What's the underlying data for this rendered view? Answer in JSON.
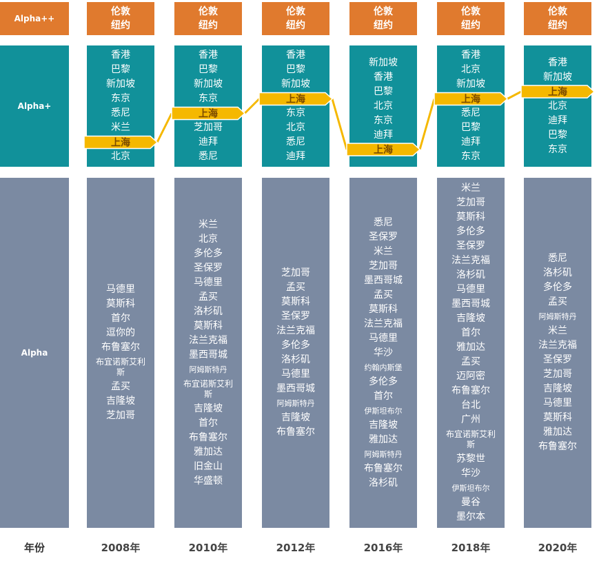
{
  "tiers": {
    "alpha_pp": "Alpha++",
    "alpha_p": "Alpha+",
    "alpha": "Alpha",
    "year_label": "年份"
  },
  "columns": [
    {
      "year": "2008年",
      "top": [
        "伦敦",
        "纽约"
      ],
      "alpha_plus": [
        "香港",
        "巴黎",
        "新加坡",
        "东京",
        "悉尼",
        "米兰",
        "上海",
        "北京"
      ],
      "alpha": [
        "马德里",
        "莫斯科",
        "首尔",
        "逗你的",
        "布鲁塞尔",
        "布宜诺斯艾利斯",
        "孟买",
        "吉隆坡",
        "芝加哥"
      ]
    },
    {
      "year": "2010年",
      "top": [
        "伦敦",
        "纽约"
      ],
      "alpha_plus": [
        "香港",
        "巴黎",
        "新加坡",
        "东京",
        "上海",
        "芝加哥",
        "迪拜",
        "悉尼"
      ],
      "alpha": [
        "米兰",
        "北京",
        "多伦多",
        "圣保罗",
        "马德里",
        "孟买",
        "洛杉矶",
        "莫斯科",
        "法兰克福",
        "墨西哥城",
        "阿姆斯特丹",
        "布宜诺斯艾利斯",
        "吉隆坡",
        "首尔",
        "布鲁塞尔",
        "雅加达",
        "旧金山",
        "华盛顿"
      ]
    },
    {
      "year": "2012年",
      "top": [
        "伦敦",
        "纽约"
      ],
      "alpha_plus": [
        "香港",
        "巴黎",
        "新加坡",
        "上海",
        "东京",
        "北京",
        "悉尼",
        "迪拜"
      ],
      "alpha": [
        "芝加哥",
        "孟买",
        "莫斯科",
        "圣保罗",
        "法兰克福",
        "多伦多",
        "洛杉矶",
        "马德里",
        "墨西哥城",
        "阿姆斯特丹",
        "吉隆坡",
        "布鲁塞尔"
      ]
    },
    {
      "year": "2016年",
      "top": [
        "伦敦",
        "纽约"
      ],
      "alpha_plus": [
        "新加坡",
        "香港",
        "巴黎",
        "北京",
        "东京",
        "迪拜",
        "上海"
      ],
      "alpha": [
        "悉尼",
        "圣保罗",
        "米兰",
        "芝加哥",
        "墨西哥城",
        "孟买",
        "莫斯科",
        "法兰克福",
        "马德里",
        "华沙",
        "约翰内斯堡",
        "多伦多",
        "首尔",
        "伊斯坦布尔",
        "吉隆坡",
        "雅加达",
        "阿姆斯特丹",
        "布鲁塞尔",
        "洛杉矶"
      ]
    },
    {
      "year": "2018年",
      "top": [
        "伦敦",
        "纽约"
      ],
      "alpha_plus": [
        "香港",
        "北京",
        "新加坡",
        "上海",
        "悉尼",
        "巴黎",
        "迪拜",
        "东京"
      ],
      "alpha": [
        "米兰",
        "芝加哥",
        "莫斯科",
        "多伦多",
        "圣保罗",
        "法兰克福",
        "洛杉矶",
        "马德里",
        "墨西哥城",
        "吉隆坡",
        "首尔",
        "雅加达",
        "孟买",
        "迈阿密",
        "布鲁塞尔",
        "台北",
        "广州",
        "布宜诺斯艾利斯",
        "苏黎世",
        "华沙",
        "伊斯坦布尔",
        "曼谷",
        "墨尔本"
      ]
    },
    {
      "year": "2020年",
      "top": [
        "伦敦",
        "纽约"
      ],
      "alpha_plus": [
        "香港",
        "新加坡",
        "上海",
        "北京",
        "迪拜",
        "巴黎",
        "东京"
      ],
      "alpha": [
        "悉尼",
        "洛杉矶",
        "多伦多",
        "孟买",
        "阿姆斯特丹",
        "米兰",
        "法兰克福",
        "圣保罗",
        "芝加哥",
        "吉隆坡",
        "马德里",
        "莫斯科",
        "雅加达",
        "布鲁塞尔"
      ]
    }
  ],
  "highlight": {
    "city": "上海",
    "fill": "#f5b800",
    "stroke": "#ffffff"
  },
  "colors": {
    "alpha_pp": "#e07a2e",
    "alpha_p": "#11919a",
    "alpha": "#7b8aa2"
  }
}
